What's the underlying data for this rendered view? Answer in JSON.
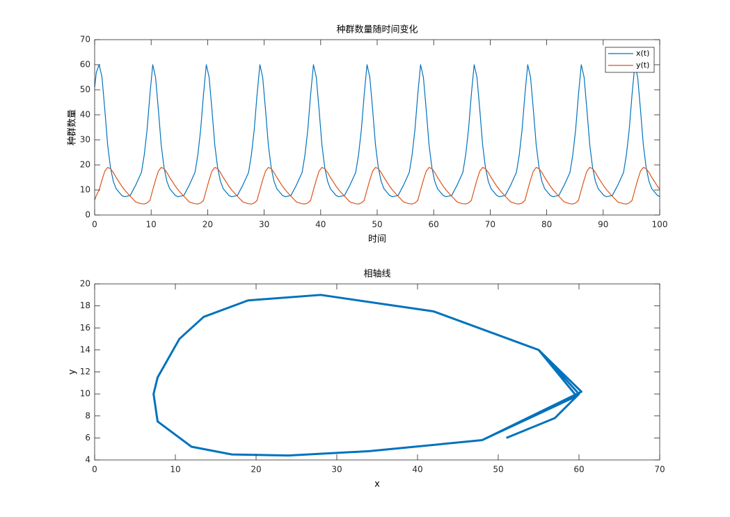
{
  "chart_data": [
    {
      "type": "line",
      "title": "种群数量随时间变化",
      "xlabel": "时间",
      "ylabel": "种群数量",
      "x": [
        0,
        0.3,
        0.8,
        1.3,
        1.8,
        2.3,
        2.8,
        3.3,
        3.8,
        4.8,
        5.3,
        6.3,
        7.28,
        8.28,
        8.78,
        9.28,
        9.78,
        10.28,
        10.78,
        11.28,
        11.78,
        12.28,
        12.78,
        13.28,
        14.28,
        14.78,
        15.78,
        16.76,
        17.76,
        18.26,
        18.76,
        19.26,
        19.76,
        20.26,
        20.76,
        21.26,
        21.76,
        22.26,
        22.76,
        23.76,
        24.26,
        25.26,
        26.24,
        27.24,
        27.74,
        28.24,
        28.74,
        29.24,
        29.74,
        30.24,
        30.74,
        31.24,
        31.74,
        32.24,
        33.24,
        33.74,
        34.74,
        35.72,
        36.72,
        37.22,
        37.72,
        38.22,
        38.72,
        39.22,
        39.72,
        40.22,
        40.72,
        41.22,
        41.72,
        42.72,
        43.22,
        44.22,
        45.2,
        46.2,
        46.7,
        47.2,
        47.7,
        48.2,
        48.7,
        49.2,
        49.7,
        50.2,
        50.7,
        51.2,
        52.2,
        52.7,
        53.7,
        54.68,
        55.68,
        56.18,
        56.68,
        57.18,
        57.68,
        58.18,
        58.68,
        59.18,
        59.68,
        60.18,
        60.68,
        61.68,
        62.18,
        63.18,
        64.16,
        65.16,
        65.66,
        66.16,
        66.66,
        67.16,
        67.66,
        68.16,
        68.66,
        69.16,
        69.66,
        70.16,
        71.16,
        71.66,
        72.66,
        73.64,
        74.64,
        75.14,
        75.64,
        76.14,
        76.64,
        77.14,
        77.64,
        78.14,
        78.64,
        79.14,
        79.64,
        80.64,
        81.14,
        82.14,
        83.12,
        84.12,
        84.62,
        85.12,
        85.62,
        86.12,
        86.62,
        87.12,
        87.62,
        88.12,
        88.62,
        89.12,
        90.12,
        90.62,
        91.62,
        92.6,
        93.6,
        94.1,
        94.6,
        95.1,
        95.6,
        96.1,
        96.6,
        97.1,
        97.6,
        98.1,
        98.6,
        99.6,
        100
      ],
      "series": [
        {
          "name": "x(t)",
          "color": "#0072BD",
          "values": [
            51,
            57,
            60,
            55,
            42,
            28,
            19,
            13.5,
            10.5,
            7.8,
            7.3,
            7.8,
            12,
            17,
            24,
            34,
            48,
            60,
            55,
            42,
            28,
            19,
            13.5,
            10.5,
            7.8,
            7.3,
            7.8,
            12,
            17,
            24,
            34,
            48,
            60,
            55,
            42,
            28,
            19,
            13.5,
            10.5,
            7.8,
            7.3,
            7.8,
            12,
            17,
            24,
            34,
            48,
            60,
            55,
            42,
            28,
            19,
            13.5,
            10.5,
            7.8,
            7.3,
            7.8,
            12,
            17,
            24,
            34,
            48,
            60,
            55,
            42,
            28,
            19,
            13.5,
            10.5,
            7.8,
            7.3,
            7.8,
            12,
            17,
            24,
            34,
            48,
            60,
            55,
            42,
            28,
            19,
            13.5,
            10.5,
            7.8,
            7.3,
            7.8,
            12,
            17,
            24,
            34,
            48,
            60,
            55,
            42,
            28,
            19,
            13.5,
            10.5,
            7.8,
            7.3,
            7.8,
            12,
            17,
            24,
            34,
            48,
            60,
            55,
            42,
            28,
            19,
            13.5,
            10.5,
            7.8,
            7.3,
            7.8,
            12,
            17,
            24,
            34,
            48,
            60,
            55,
            42,
            28,
            19,
            13.5,
            10.5,
            7.8,
            7.3,
            7.8,
            12,
            17,
            24,
            34,
            48,
            60,
            55,
            42,
            28,
            19,
            13.5,
            10.5,
            7.8,
            7.3,
            7.8,
            12,
            17,
            24,
            34,
            48,
            60,
            55,
            42,
            28,
            19,
            13.5,
            10.5,
            7.8,
            7.4
          ]
        },
        {
          "name": "y(t)",
          "color": "#D95319",
          "values": [
            6,
            7.8,
            10,
            14,
            17.5,
            19,
            18.5,
            17,
            15,
            11.5,
            10,
            7.5,
            5.2,
            4.5,
            4.4,
            4.8,
            5.8,
            10,
            14,
            17.5,
            19,
            18.5,
            17,
            15,
            11.5,
            10,
            7.5,
            5.2,
            4.5,
            4.4,
            4.8,
            5.8,
            10,
            14,
            17.5,
            19,
            18.5,
            17,
            15,
            11.5,
            10,
            7.5,
            5.2,
            4.5,
            4.4,
            4.8,
            5.8,
            10,
            14,
            17.5,
            19,
            18.5,
            17,
            15,
            11.5,
            10,
            7.5,
            5.2,
            4.5,
            4.4,
            4.8,
            5.8,
            10,
            14,
            17.5,
            19,
            18.5,
            17,
            15,
            11.5,
            10,
            7.5,
            5.2,
            4.5,
            4.4,
            4.8,
            5.8,
            10,
            14,
            17.5,
            19,
            18.5,
            17,
            15,
            11.5,
            10,
            7.5,
            5.2,
            4.5,
            4.4,
            4.8,
            5.8,
            10,
            14,
            17.5,
            19,
            18.5,
            17,
            15,
            11.5,
            10,
            7.5,
            5.2,
            4.5,
            4.4,
            4.8,
            5.8,
            10,
            14,
            17.5,
            19,
            18.5,
            17,
            15,
            11.5,
            10,
            7.5,
            5.2,
            4.5,
            4.4,
            4.8,
            5.8,
            10,
            14,
            17.5,
            19,
            18.5,
            17,
            15,
            11.5,
            10,
            7.5,
            5.2,
            4.5,
            4.4,
            4.8,
            5.8,
            10,
            14,
            17.5,
            19,
            18.5,
            17,
            15,
            11.5,
            10,
            7.5,
            5.2,
            4.5,
            4.4,
            4.8,
            5.8,
            10,
            14,
            17.5,
            19,
            18.5,
            17,
            15,
            11.5,
            10.3
          ]
        }
      ],
      "xlim": [
        0,
        100
      ],
      "ylim": [
        0,
        70
      ],
      "xticks": [
        0,
        10,
        20,
        30,
        40,
        50,
        60,
        70,
        80,
        90,
        100
      ],
      "yticks": [
        0,
        10,
        20,
        30,
        40,
        50,
        60,
        70
      ],
      "legend": "upper right"
    },
    {
      "type": "line",
      "title": "相轴线",
      "xlabel": "x",
      "ylabel": "y",
      "color": "#0072BD",
      "x": [
        51,
        57,
        60,
        55,
        42,
        28,
        19,
        13.5,
        10.5,
        7.8,
        7.3,
        7.8,
        12,
        17,
        24,
        34,
        48,
        60,
        55,
        42,
        28,
        19,
        13.5,
        10.5,
        7.8,
        7.3,
        7.8,
        12,
        17,
        24,
        34,
        48,
        60.3,
        55,
        42,
        28,
        19,
        13.5,
        10.5,
        7.8,
        7.3,
        7.8,
        12,
        17,
        24,
        34,
        48,
        59.7,
        55,
        42,
        28,
        19,
        13.5,
        10.5,
        7.8,
        7.3,
        7.8
      ],
      "values": [
        6,
        7.8,
        10,
        14,
        17.5,
        19,
        18.5,
        17,
        15,
        11.5,
        10,
        7.5,
        5.2,
        4.5,
        4.4,
        4.8,
        5.8,
        10,
        14,
        17.5,
        19,
        18.5,
        17,
        15,
        11.5,
        10,
        7.5,
        5.2,
        4.5,
        4.4,
        4.8,
        5.8,
        10.2,
        14,
        17.5,
        19,
        18.5,
        17,
        15,
        11.5,
        10,
        7.5,
        5.2,
        4.5,
        4.4,
        4.8,
        5.8,
        9.8,
        14,
        17.5,
        19,
        18.5,
        17,
        15,
        11.5,
        10,
        7.5
      ],
      "xlim": [
        0,
        70
      ],
      "ylim": [
        4,
        20
      ],
      "xticks": [
        0,
        10,
        20,
        30,
        40,
        50,
        60,
        70
      ],
      "yticks": [
        4,
        6,
        8,
        10,
        12,
        14,
        16,
        18,
        20
      ]
    }
  ]
}
